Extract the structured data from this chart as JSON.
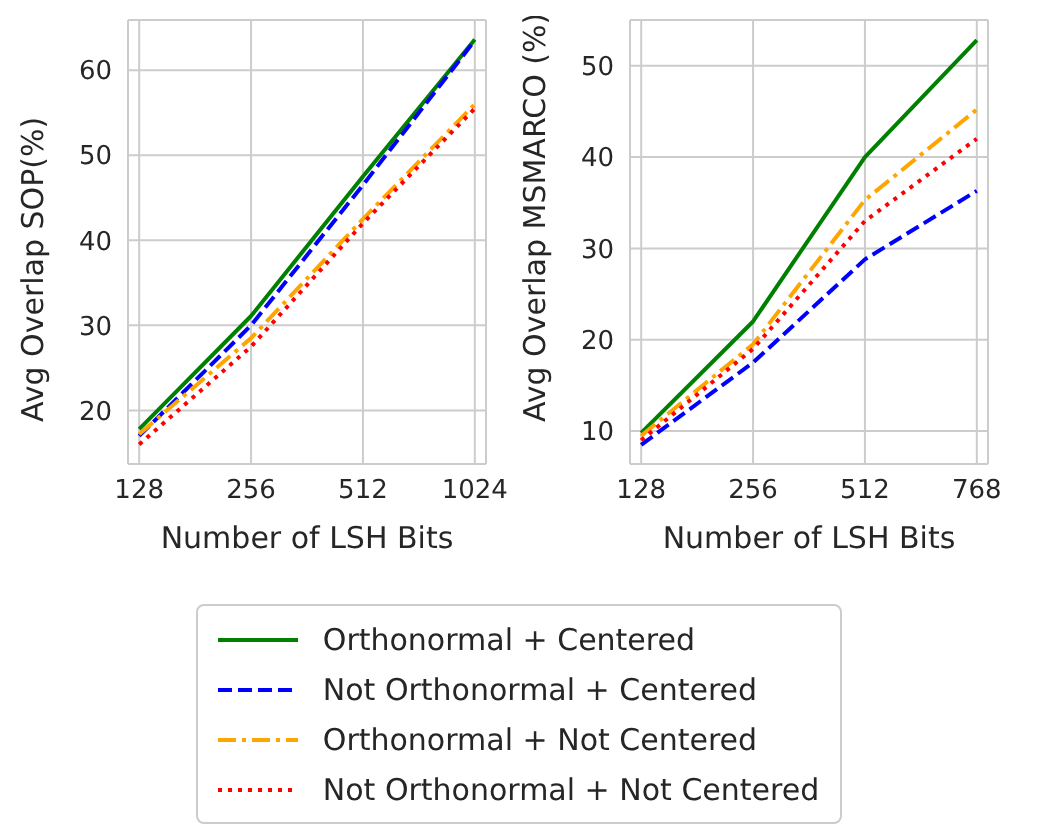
{
  "chart_data": [
    {
      "type": "line",
      "xlabel": "Number of LSH Bits",
      "ylabel": "Avg Overlap SOP(%)",
      "categories": [
        "128",
        "256",
        "512",
        "1024"
      ],
      "series": [
        {
          "name": "Orthonormal + Centered",
          "color": "#008000",
          "line_style": "solid",
          "values": [
            17.8,
            31.1,
            47.5,
            63.6
          ]
        },
        {
          "name": "Not Orthonormal + Centered",
          "color": "#0000ff",
          "line_style": "dashed",
          "values": [
            17,
            30,
            46.5,
            63.5
          ]
        },
        {
          "name": "Orthonormal + Not Centered",
          "color": "#ffa500",
          "line_style": "dashdot",
          "values": [
            17.2,
            28.5,
            42.5,
            56
          ]
        },
        {
          "name": "Not Orthonormal + Not Centered",
          "color": "#ff0000",
          "line_style": "dotted",
          "values": [
            16,
            27.5,
            42,
            55.5
          ]
        }
      ],
      "ylim": [
        13.7,
        65.9
      ],
      "yticks": [
        20,
        30,
        40,
        50,
        60
      ],
      "grid": true,
      "legend": "bottom"
    },
    {
      "type": "line",
      "xlabel": "Number of LSH Bits",
      "ylabel": "Avg Overlap MSMARCO (%)",
      "categories": [
        "128",
        "256",
        "512",
        "768"
      ],
      "series": [
        {
          "color": "#008000",
          "line_style": "solid",
          "values": [
            9.8,
            22,
            40,
            52.8
          ]
        },
        {
          "color": "#0000ff",
          "line_style": "dashed",
          "values": [
            8.5,
            17.5,
            28.8,
            36.3
          ]
        },
        {
          "color": "#ffa500",
          "line_style": "dashdot",
          "values": [
            9.5,
            19.5,
            35.3,
            45.2
          ]
        },
        {
          "color": "#ff0000",
          "line_style": "dotted",
          "values": [
            9,
            19,
            33,
            42
          ]
        }
      ],
      "ylim": [
        6.4,
        55
      ],
      "yticks": [
        10,
        20,
        30,
        40,
        50
      ],
      "grid": true
    }
  ]
}
